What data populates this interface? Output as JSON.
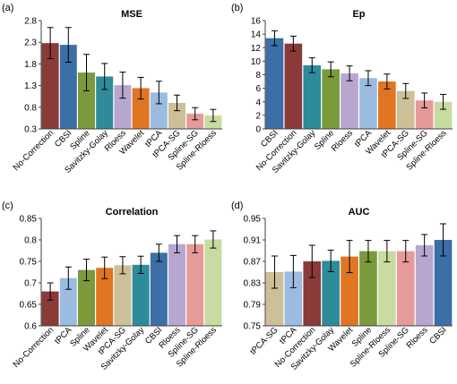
{
  "chart_data": [
    {
      "panel_label": "(a)",
      "type": "bar",
      "title": "MSE",
      "xlabel": "",
      "ylabel": "",
      "ylim": [
        0.3,
        2.8
      ],
      "yticks": [
        "0.3",
        "0.8",
        "1.3",
        "1.8",
        "2.3",
        "2.8"
      ],
      "grid": false,
      "error_bars": true,
      "categories": [
        "No-Correction",
        "CBSI",
        "Spline",
        "Savitzky-Golay",
        "Rloess",
        "Wavelet",
        "tPCA",
        "tPCA-SG",
        "Spline-SG",
        "Spline-Rloess"
      ],
      "values": [
        2.28,
        2.24,
        1.6,
        1.51,
        1.31,
        1.24,
        1.14,
        0.9,
        0.65,
        0.61
      ],
      "errors": [
        0.36,
        0.4,
        0.42,
        0.3,
        0.3,
        0.25,
        0.26,
        0.18,
        0.14,
        0.14
      ],
      "colors": [
        "#8b3a3a",
        "#3b6fa5",
        "#7a9a3c",
        "#2e8b9a",
        "#b7a7d0",
        "#e07522",
        "#9bbbe0",
        "#cdbf98",
        "#e79a9a",
        "#c8dba0"
      ]
    },
    {
      "panel_label": "(b)",
      "type": "bar",
      "title": "Ep",
      "xlabel": "",
      "ylabel": "",
      "ylim": [
        0,
        16
      ],
      "yticks": [
        "0",
        "2",
        "4",
        "6",
        "8",
        "10",
        "12",
        "14",
        "16"
      ],
      "grid": false,
      "error_bars": true,
      "categories": [
        "CBSI",
        "No-Correction",
        "Savitzky-Golay",
        "Spline",
        "Rloess",
        "tPCA",
        "Wavelet",
        "tPCA-SG",
        "Spline-SG",
        "Spline-Rloess"
      ],
      "values": [
        13.4,
        12.6,
        9.4,
        8.8,
        8.2,
        7.5,
        7.0,
        5.6,
        4.2,
        4.0
      ],
      "errors": [
        1.1,
        1.1,
        1.1,
        1.1,
        1.1,
        1.1,
        1.1,
        1.1,
        1.1,
        1.1
      ],
      "colors": [
        "#3b6fa5",
        "#8b3a3a",
        "#2e8b9a",
        "#7a9a3c",
        "#b7a7d0",
        "#9bbbe0",
        "#e07522",
        "#cdbf98",
        "#e79a9a",
        "#c8dba0"
      ]
    },
    {
      "panel_label": "(c)",
      "type": "bar",
      "title": "Correlation",
      "xlabel": "",
      "ylabel": "",
      "ylim": [
        0.6,
        0.85
      ],
      "yticks": [
        "0.6",
        "0.65",
        "0.7",
        "0.75",
        "0.8",
        "0.85"
      ],
      "grid": false,
      "error_bars": true,
      "categories": [
        "No-Correction",
        "tPCA",
        "Spline",
        "Wavelet",
        "tPCA-SG",
        "Savitzky-Golay",
        "CBSI",
        "Rloess",
        "Spline-SG",
        "Spline-Rloess"
      ],
      "values": [
        0.68,
        0.711,
        0.73,
        0.735,
        0.741,
        0.742,
        0.77,
        0.79,
        0.79,
        0.801
      ],
      "errors": [
        0.02,
        0.026,
        0.025,
        0.025,
        0.02,
        0.02,
        0.02,
        0.02,
        0.02,
        0.02
      ],
      "colors": [
        "#8b3a3a",
        "#9bbbe0",
        "#7a9a3c",
        "#e07522",
        "#cdbf98",
        "#2e8b9a",
        "#3b6fa5",
        "#b7a7d0",
        "#e79a9a",
        "#c8dba0"
      ]
    },
    {
      "panel_label": "(d)",
      "type": "bar",
      "title": "AUC",
      "xlabel": "",
      "ylabel": "",
      "ylim": [
        0.75,
        0.95
      ],
      "yticks": [
        "0.75",
        "0.79",
        "0.83",
        "0.87",
        "0.91",
        "0.95"
      ],
      "grid": false,
      "error_bars": true,
      "categories": [
        "tPCA-SG",
        "tPCA",
        "No-Correction",
        "Savitzky-Golay",
        "Wavelet",
        "Spline",
        "Spline-Rloess",
        "Spline-SG",
        "Rloess",
        "CBSI"
      ],
      "values": [
        0.85,
        0.851,
        0.87,
        0.871,
        0.879,
        0.889,
        0.889,
        0.889,
        0.9,
        0.91
      ],
      "errors": [
        0.03,
        0.03,
        0.03,
        0.02,
        0.03,
        0.02,
        0.02,
        0.02,
        0.02,
        0.03
      ],
      "colors": [
        "#cdbf98",
        "#9bbbe0",
        "#8b3a3a",
        "#2e8b9a",
        "#e07522",
        "#7a9a3c",
        "#c8dba0",
        "#e79a9a",
        "#b7a7d0",
        "#3b6fa5"
      ]
    }
  ]
}
